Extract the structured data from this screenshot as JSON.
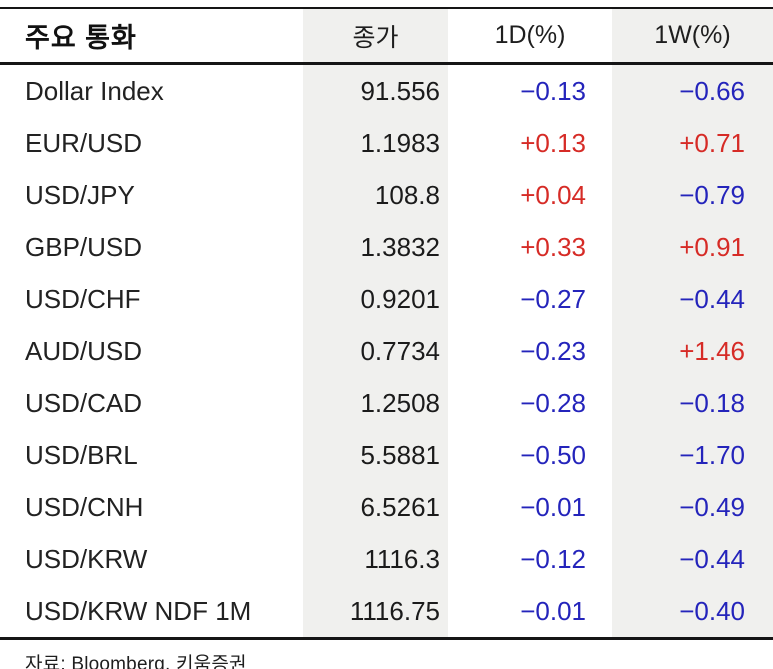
{
  "colors": {
    "positive_red": "#d62b26",
    "negative_blue": "#2424bb",
    "band_gray": "#f0f0ee",
    "rule_black": "#151515"
  },
  "chart_data": {
    "type": "table",
    "title": "주요 통화",
    "columns": [
      "주요 통화",
      "종가",
      "1D(%)",
      "1W(%)"
    ],
    "rows": [
      {
        "label": "Dollar Index",
        "close": "91.556",
        "d1": "−0.13",
        "w1": "−0.66"
      },
      {
        "label": "EUR/USD",
        "close": "1.1983",
        "d1": "+0.13",
        "w1": "+0.71"
      },
      {
        "label": "USD/JPY",
        "close": "108.8",
        "d1": "+0.04",
        "w1": "−0.79"
      },
      {
        "label": "GBP/USD",
        "close": "1.3832",
        "d1": "+0.33",
        "w1": "+0.91"
      },
      {
        "label": "USD/CHF",
        "close": "0.9201",
        "d1": "−0.27",
        "w1": "−0.44"
      },
      {
        "label": "AUD/USD",
        "close": "0.7734",
        "d1": "−0.23",
        "w1": "+1.46"
      },
      {
        "label": "USD/CAD",
        "close": "1.2508",
        "d1": "−0.28",
        "w1": "−0.18"
      },
      {
        "label": "USD/BRL",
        "close": "5.5881",
        "d1": "−0.50",
        "w1": "−1.70"
      },
      {
        "label": "USD/CNH",
        "close": "6.5261",
        "d1": "−0.01",
        "w1": "−0.49"
      },
      {
        "label": "USD/KRW",
        "close": "1116.3",
        "d1": "−0.12",
        "w1": "−0.44"
      },
      {
        "label": "USD/KRW NDF 1M",
        "close": "1116.75",
        "d1": "−0.01",
        "w1": "−0.40"
      }
    ],
    "source": "자료: Bloomberg, 키움증권"
  }
}
